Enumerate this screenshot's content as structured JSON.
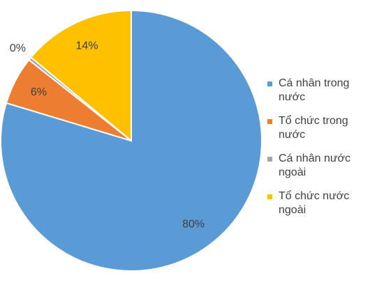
{
  "chart_data": {
    "type": "pie",
    "categories": [
      "Cá nhân trong nước",
      "Tổ chức trong nước",
      "Cá nhân nước ngoài",
      "Tổ chức nước ngoài"
    ],
    "values": [
      80,
      6,
      0.4,
      14
    ],
    "value_labels": [
      "80%",
      "6%",
      "0%",
      "14%"
    ],
    "colors": [
      "#5b9bd5",
      "#ed7d31",
      "#a5a5a5",
      "#ffc000"
    ],
    "legend": "right"
  }
}
